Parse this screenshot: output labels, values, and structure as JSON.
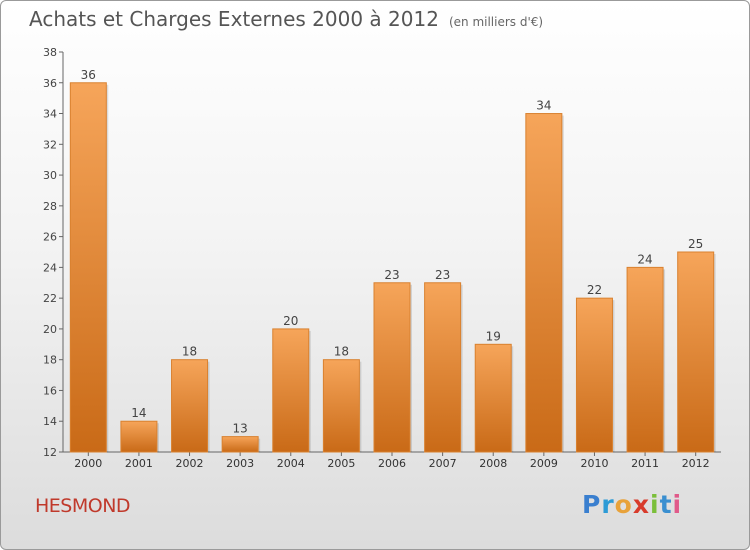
{
  "title": "Achats et Charges Externes 2000 à 2012",
  "subtitle": "(en milliers d'€)",
  "commune": "HESMOND",
  "logo": {
    "letters": [
      "P",
      "r",
      "o",
      "x",
      "i",
      "t",
      "i"
    ],
    "colors": [
      "#3a7fcf",
      "#2d9bd6",
      "#e8a23a",
      "#d83b2b",
      "#7bbf3a",
      "#3a8fd0",
      "#e05a8a"
    ]
  },
  "colors": {
    "bar": "#e8862a",
    "bar_light": "#f6a55a",
    "bar_dark": "#c96a17",
    "commune": "#c0392b"
  },
  "chart_data": {
    "type": "bar",
    "categories": [
      "2000",
      "2001",
      "2002",
      "2003",
      "2004",
      "2005",
      "2006",
      "2007",
      "2008",
      "2009",
      "2010",
      "2011",
      "2012"
    ],
    "values": [
      36,
      14,
      18,
      13,
      20,
      18,
      23,
      23,
      19,
      34,
      22,
      24,
      25
    ],
    "ylim": [
      12,
      38
    ],
    "yticks": [
      12,
      14,
      16,
      18,
      20,
      22,
      24,
      26,
      28,
      30,
      32,
      34,
      36,
      38
    ],
    "grid": false,
    "legend": "none"
  }
}
